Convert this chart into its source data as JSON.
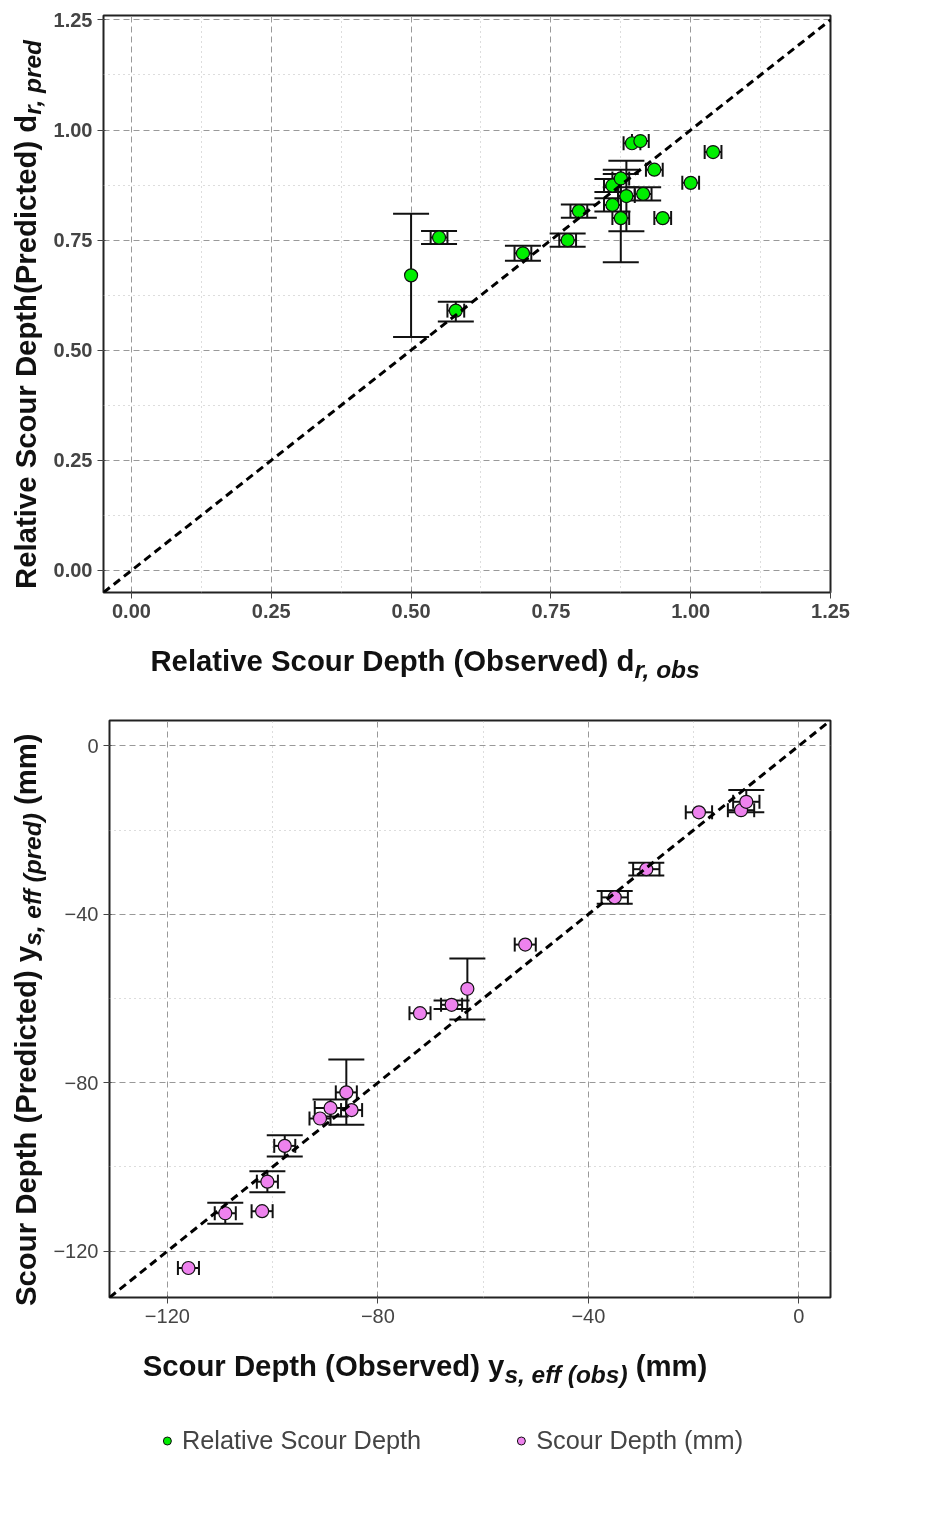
{
  "chart_data": [
    {
      "type": "scatter",
      "xlabel": "Relative Scour Depth (Observed) d$_{r, obs}$",
      "ylabel": "Relative Scour Depth(Predicted) d$_{r, pred}$",
      "xlim": [
        -0.05,
        1.25
      ],
      "ylim": [
        -0.05,
        1.26
      ],
      "xticks": [
        {
          "value": 0,
          "label": "0.00"
        },
        {
          "value": 0.25,
          "label": "0.25"
        },
        {
          "value": 0.5,
          "label": "0.50"
        },
        {
          "value": 0.75,
          "label": "0.75"
        },
        {
          "value": 1,
          "label": "1.00"
        },
        {
          "value": 1.25,
          "label": "1.25"
        }
      ],
      "yticks": [
        {
          "value": 0,
          "label": "0.00"
        },
        {
          "value": 0.25,
          "label": "0.25"
        },
        {
          "value": 0.5,
          "label": "0.50"
        },
        {
          "value": 0.75,
          "label": "0.75"
        },
        {
          "value": 1,
          "label": "1.00"
        },
        {
          "value": 1.25,
          "label": "1.25"
        }
      ],
      "grid": true,
      "legend": "bottom",
      "series": [
        {
          "name": "Relative Scour Depth",
          "color": "#00ee00",
          "marker": "circle",
          "x": [
            0.5,
            0.55,
            0.58,
            0.7,
            0.78,
            0.8,
            0.86,
            0.86,
            0.875,
            0.875,
            0.885,
            0.895,
            0.91,
            0.915,
            0.935,
            0.95,
            1.0,
            1.04
          ],
          "values": [
            0.67,
            0.756,
            0.59,
            0.72,
            0.75,
            0.816,
            0.83,
            0.874,
            0.89,
            0.8,
            0.85,
            0.97,
            0.975,
            0.855,
            0.91,
            0.8,
            0.88,
            0.95
          ],
          "errors": [
            [
              0.53,
              0.81
            ],
            0.015,
            [
              0.565,
              0.61
            ],
            0.017,
            0.015,
            0.015,
            0.015,
            0.015,
            0.02,
            [
              0.7,
              0.9
            ],
            [
              0.77,
              0.93
            ],
            null,
            null,
            0.015,
            null,
            null,
            null,
            null
          ],
          "xerrors": [
            null,
            0.015,
            0.015,
            0.015,
            0.015,
            0.015,
            0.015,
            0.015,
            0.015,
            0.015,
            0.015,
            0.015,
            0.015,
            0.015,
            0.015,
            0.015,
            0.015,
            0.015
          ]
        },
        {
          "type": "line",
          "color": "#000000",
          "line_style": "dashed",
          "x": [
            -0.05,
            1.25
          ],
          "values": [
            -0.05,
            1.25
          ]
        }
      ]
    },
    {
      "type": "scatter",
      "xlabel": "Scour Depth (Observed) y$_{s, eff (obs)}$ (mm)",
      "ylabel": "Scour Depth (Predicted) y$_{s, eff (pred)}$ (mm)",
      "xlim": [
        -131,
        6
      ],
      "ylim": [
        -131,
        6
      ],
      "xticks": [
        -120,
        -80,
        -40,
        0
      ],
      "yticks": [
        -120,
        -80,
        -40,
        0
      ],
      "grid": true,
      "legend": "bottom",
      "series": [
        {
          "name": "Scour Depth (mm)",
          "color": "#ee82ee",
          "marker": "circle",
          "x": [
            -116,
            -109,
            -102,
            -101,
            -97.7,
            -91,
            -89,
            -86,
            -85,
            -72,
            -66,
            -63,
            -52,
            -35,
            -29,
            -19,
            -11,
            -10
          ],
          "values": [
            -124,
            -111,
            -110.5,
            -103.5,
            -95,
            -88.5,
            -86,
            -82.3,
            -86.5,
            -63.5,
            -61.5,
            -57.7,
            -47.2,
            -36,
            -29.3,
            -15.8,
            -15.3,
            -13.3
          ],
          "errors": [
            null,
            2.5,
            null,
            2.5,
            2.5,
            null,
            2,
            [
              -90,
              -74.5
            ],
            null,
            null,
            1,
            [
              -65,
              -50.5
            ],
            null,
            1.5,
            1.5,
            null,
            null,
            [
              -15.8,
              -10.5
            ]
          ],
          "xerrors": [
            2,
            2,
            2,
            2,
            2,
            2,
            3,
            2,
            2,
            2,
            2,
            null,
            2,
            2.5,
            2.5,
            2.5,
            2.5,
            2.5
          ]
        },
        {
          "type": "line",
          "color": "#000000",
          "line_style": "dashed",
          "x": [
            -131,
            6
          ],
          "values": [
            -131,
            6
          ]
        }
      ]
    }
  ]
}
